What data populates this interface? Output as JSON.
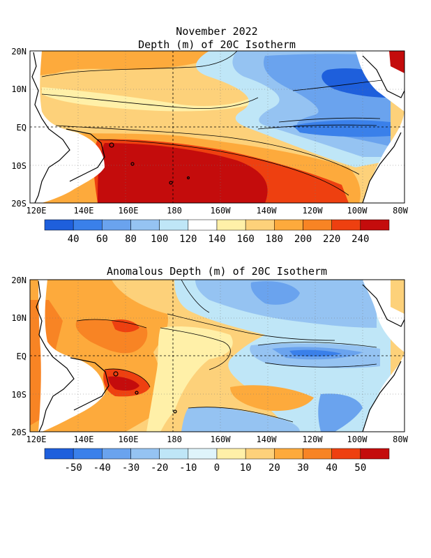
{
  "header": {
    "date_title": "November 2022",
    "map1_title": "Depth (m) of 20C Isotherm",
    "map2_title": "Anomalous Depth (m) of 20C Isotherm"
  },
  "axes": {
    "lat_labels": [
      "20N",
      "10N",
      "EQ",
      "10S",
      "20S"
    ],
    "lon_labels": [
      "120E",
      "140E",
      "160E",
      "180",
      "160W",
      "140W",
      "120W",
      "100W",
      "80W"
    ]
  },
  "depth_colorbar": {
    "labels": [
      "40",
      "60",
      "80",
      "100",
      "120",
      "140",
      "160",
      "180",
      "200",
      "220",
      "240"
    ],
    "colors": [
      "#1e5fdc",
      "#3a80ea",
      "#6aa3ee",
      "#95c3f2",
      "#bfe6f7",
      "#ffffff",
      "#fff0a8",
      "#fdd17a",
      "#fdaa3c",
      "#f88424",
      "#ee4010",
      "#c40c0c"
    ]
  },
  "anomaly_colorbar": {
    "labels": [
      "-50",
      "-40",
      "-30",
      "-20",
      "-10",
      "0",
      "10",
      "20",
      "30",
      "40",
      "50"
    ],
    "colors": [
      "#1e5fdc",
      "#3a80ea",
      "#6aa3ee",
      "#95c3f2",
      "#bfe6f7",
      "#dff4fb",
      "#fff0a8",
      "#fdd17a",
      "#fdaa3c",
      "#f88424",
      "#ee4010",
      "#c40c0c"
    ]
  }
}
